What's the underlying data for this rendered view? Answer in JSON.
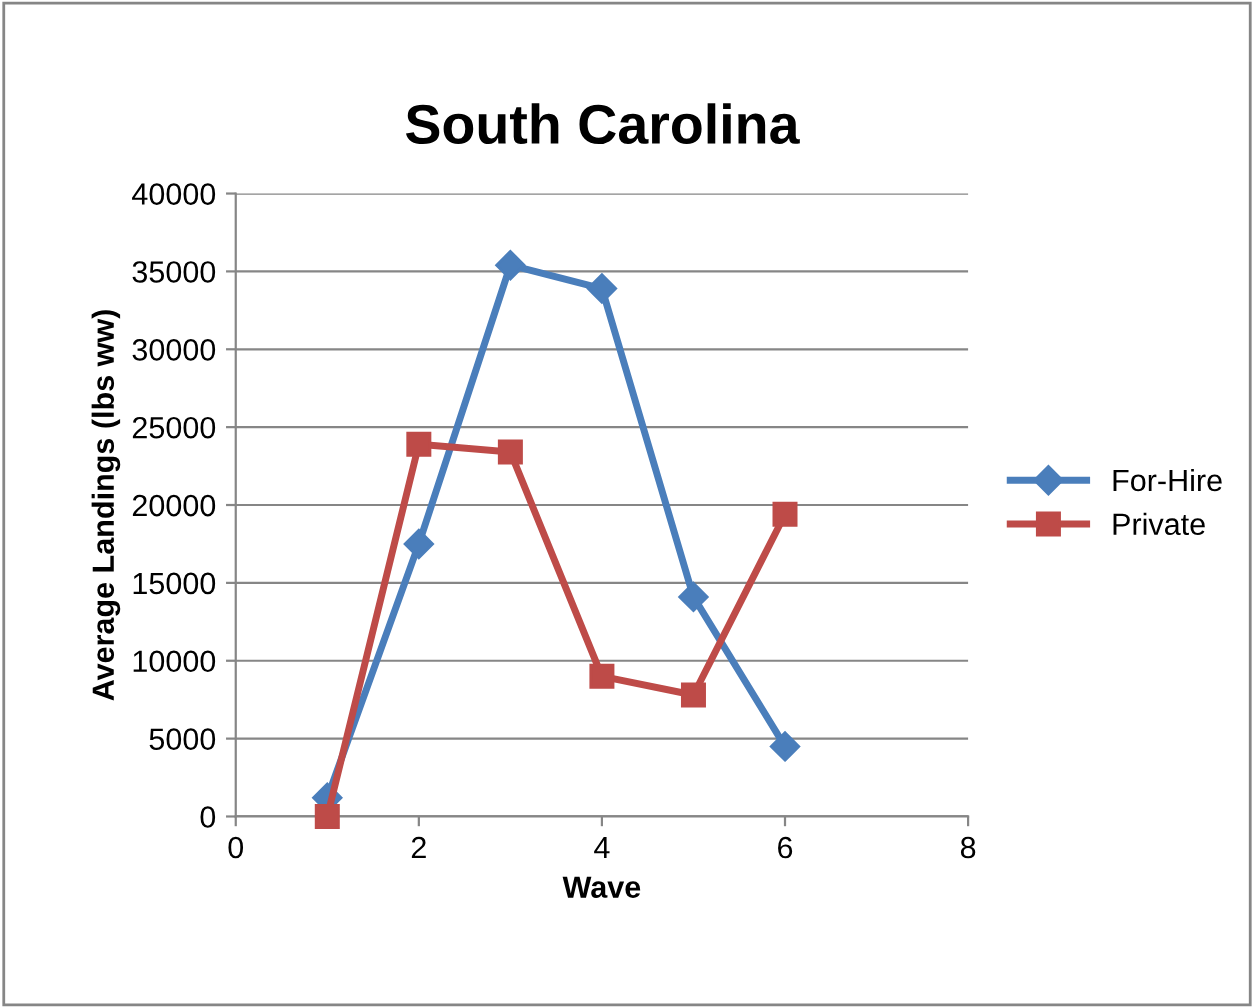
{
  "chart_data": {
    "type": "line",
    "title": "South Carolina",
    "xlabel": "Wave",
    "ylabel": "Average Landings (lbs ww)",
    "xlim": [
      0,
      8
    ],
    "xticks": [
      0,
      2,
      4,
      6,
      8
    ],
    "ylim": [
      0,
      40000
    ],
    "yticks": [
      0,
      5000,
      10000,
      15000,
      20000,
      25000,
      30000,
      35000,
      40000
    ],
    "grid": "y",
    "legend": "right",
    "line_style": "solid",
    "series": [
      {
        "name": "For-Hire",
        "color": "#4a7ebb",
        "marker": "diamond",
        "x": [
          1,
          2,
          3,
          4,
          5,
          6
        ],
        "values": [
          1200,
          17500,
          35400,
          33900,
          14100,
          4500
        ]
      },
      {
        "name": "Private",
        "color": "#be4b48",
        "marker": "square",
        "x": [
          1,
          2,
          3,
          4,
          5,
          6
        ],
        "values": [
          0,
          23900,
          23400,
          9000,
          7800,
          19400
        ]
      }
    ]
  }
}
